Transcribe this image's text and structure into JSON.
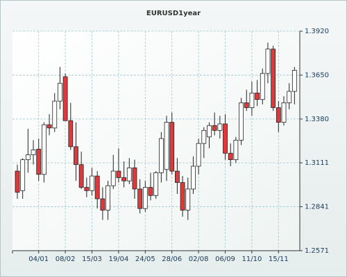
{
  "chart_data": {
    "type": "candlestick",
    "title": "EURUSD1year",
    "categories": [
      null,
      null,
      null,
      null,
      "04/01",
      null,
      null,
      null,
      null,
      "08/02",
      null,
      null,
      null,
      null,
      "15/03",
      null,
      null,
      null,
      null,
      "19/04",
      null,
      null,
      null,
      null,
      "24/05",
      null,
      null,
      null,
      null,
      "28/06",
      null,
      null,
      null,
      null,
      "02/08",
      null,
      null,
      null,
      null,
      "06/09",
      null,
      null,
      null,
      null,
      "11/10",
      null,
      null,
      null,
      null,
      "15/11",
      null,
      null,
      null
    ],
    "open": [
      1.306,
      1.294,
      1.313,
      1.316,
      1.3195,
      1.304,
      1.3345,
      1.3325,
      1.349,
      1.364,
      1.337,
      1.321,
      1.31,
      1.296,
      1.294,
      1.303,
      1.289,
      1.282,
      1.297,
      1.306,
      1.302,
      1.3,
      1.308,
      1.295,
      1.283,
      1.296,
      1.291,
      1.305,
      1.307,
      1.336,
      1.306,
      1.299,
      1.282,
      1.295,
      1.309,
      1.323,
      1.327,
      1.334,
      1.331,
      1.335,
      1.317,
      1.313,
      1.325,
      1.348,
      1.345,
      1.354,
      1.35,
      1.366,
      1.381,
      1.345,
      1.336,
      1.348,
      1.355
    ],
    "high": [
      1.31,
      1.314,
      1.332,
      1.325,
      1.326,
      1.336,
      1.341,
      1.354,
      1.37,
      1.366,
      1.348,
      1.336,
      1.318,
      1.302,
      1.308,
      1.306,
      1.296,
      1.3,
      1.316,
      1.32,
      1.312,
      1.314,
      1.313,
      1.301,
      1.3,
      1.305,
      1.306,
      1.33,
      1.34,
      1.342,
      1.314,
      1.303,
      1.302,
      1.315,
      1.326,
      1.333,
      1.336,
      1.342,
      1.34,
      1.341,
      1.323,
      1.327,
      1.351,
      1.356,
      1.361,
      1.362,
      1.369,
      1.385,
      1.383,
      1.349,
      1.352,
      1.36,
      1.37
    ],
    "low": [
      1.289,
      1.289,
      1.305,
      1.31,
      1.3,
      1.299,
      1.328,
      1.33,
      1.344,
      1.338,
      1.319,
      1.3,
      1.295,
      1.29,
      1.291,
      1.283,
      1.276,
      1.276,
      1.295,
      1.299,
      1.296,
      1.298,
      1.289,
      1.28,
      1.281,
      1.288,
      1.289,
      1.299,
      1.3,
      1.304,
      1.292,
      1.278,
      1.276,
      1.292,
      1.304,
      1.314,
      1.32,
      1.328,
      1.326,
      1.313,
      1.309,
      1.311,
      1.322,
      1.343,
      1.34,
      1.346,
      1.347,
      1.36,
      1.343,
      1.33,
      1.334,
      1.344,
      1.347
    ],
    "close": [
      1.293,
      1.313,
      1.316,
      1.319,
      1.304,
      1.3345,
      1.3325,
      1.349,
      1.36,
      1.337,
      1.321,
      1.31,
      1.296,
      1.294,
      1.303,
      1.289,
      1.282,
      1.297,
      1.306,
      1.302,
      1.3,
      1.308,
      1.295,
      1.283,
      1.296,
      1.291,
      1.305,
      1.326,
      1.336,
      1.306,
      1.299,
      1.282,
      1.295,
      1.309,
      1.323,
      1.331,
      1.334,
      1.331,
      1.335,
      1.317,
      1.313,
      1.325,
      1.348,
      1.345,
      1.354,
      1.35,
      1.366,
      1.381,
      1.345,
      1.336,
      1.348,
      1.355,
      1.368
    ],
    "up_color": "#ffffff",
    "down_color": "#e0393c",
    "ylim": [
      1.2571,
      1.392
    ],
    "yticks": [
      {
        "value": 1.392,
        "label": "1.3920"
      },
      {
        "value": 1.365,
        "label": "1.3650"
      },
      {
        "value": 1.338,
        "label": "1.3380"
      },
      1.3111,
      1.2841,
      1.2571
    ],
    "grid": true
  }
}
